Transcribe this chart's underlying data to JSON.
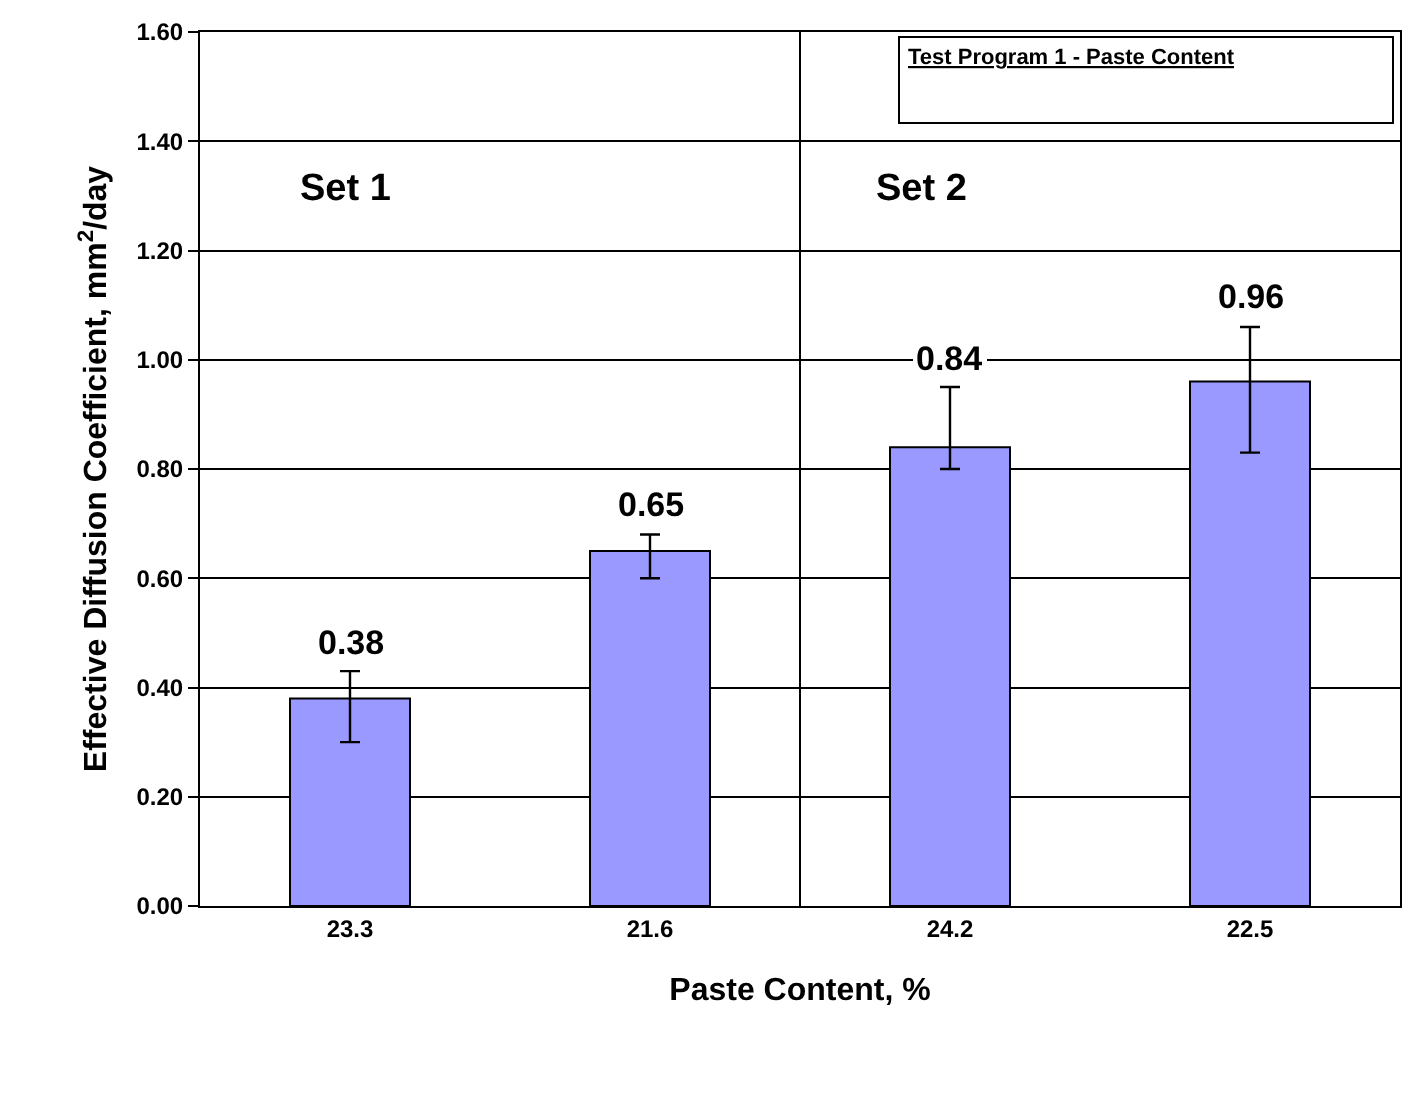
{
  "chart_data": {
    "type": "bar",
    "title": "Test Program 1 - Paste Content",
    "xlabel": "Paste Content, %",
    "ylabel": "Effective Diffusion Coefficient, mm$^{2}$/day",
    "categories": [
      "23.3",
      "21.6",
      "24.2",
      "22.5"
    ],
    "values": [
      0.38,
      0.65,
      0.84,
      0.96
    ],
    "errors": [
      [
        0.3,
        0.43
      ],
      [
        0.6,
        0.68
      ],
      [
        0.8,
        0.95
      ],
      [
        0.83,
        1.06
      ]
    ],
    "color": "#9999ff",
    "data_labels": true,
    "ylim": [
      0,
      1.6
    ],
    "yticks": [
      {
        "value": 0,
        "label": "0.00"
      },
      {
        "value": 0.2,
        "label": "0.20"
      },
      {
        "value": 0.4,
        "label": "0.40"
      },
      {
        "value": 0.6,
        "label": "0.60"
      },
      {
        "value": 0.8,
        "label": "0.80"
      },
      {
        "value": 1,
        "label": "1.00"
      },
      {
        "value": 1.2,
        "label": "1.20"
      },
      {
        "value": 1.4,
        "label": "1.40"
      },
      {
        "value": 1.6,
        "label": "1.60"
      }
    ],
    "grid": "y",
    "annotations": [
      "Set 1",
      "Set 2"
    ]
  }
}
